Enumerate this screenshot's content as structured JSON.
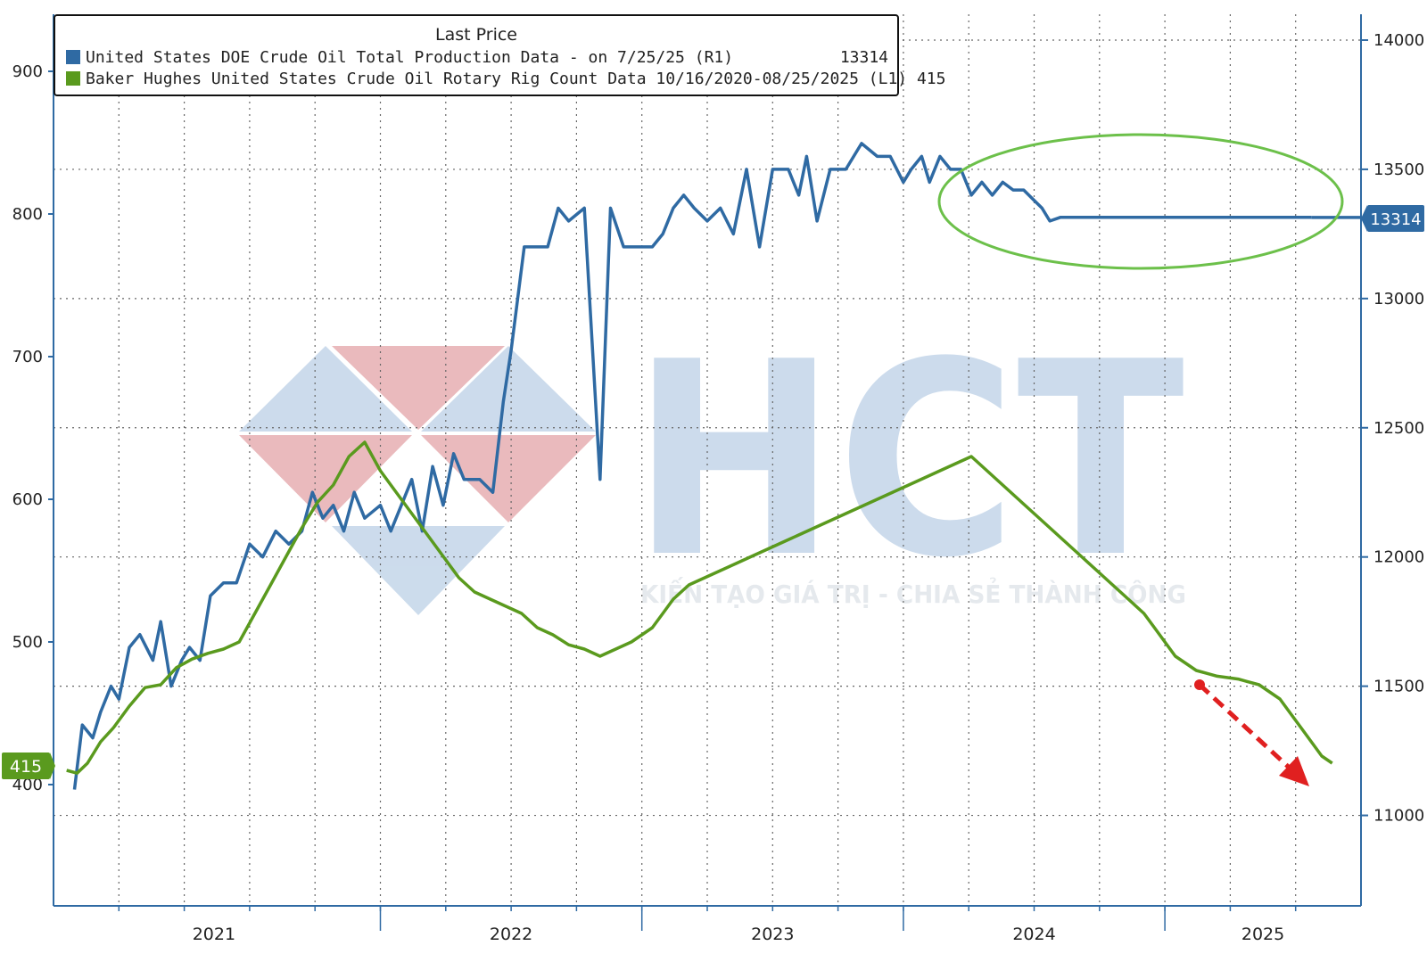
{
  "colors": {
    "production": "#2f6aa3",
    "rig_count": "#5a9a1e",
    "grid": "#555555",
    "axis": "#2f6aa3",
    "annotation_ellipse": "#6cc04a",
    "annotation_arrow": "#e02020",
    "watermark_red": "#e8b3b6",
    "watermark_blue": "#c7d8ea"
  },
  "legend": {
    "title": "Last Price",
    "series1_label": "United States DOE Crude Oil Total Production Data -  on 7/25/25  (R1)",
    "series1_value": "13314",
    "series2_label": "Baker Hughes United States Crude Oil Rotary Rig Count Data 10/16/2020-08/25/2025   (L1) 415"
  },
  "watermark": {
    "brand": "HCT",
    "tagline": "KIẾN TẠO GIÁ TRỊ - CHIA SẺ THÀNH CÔNG"
  },
  "chart_data": {
    "type": "line",
    "x_unit": "year",
    "x_ticks": [
      "2021",
      "2022",
      "2023",
      "2024",
      "2025"
    ],
    "left_axis": {
      "ticks": [
        "900",
        "800",
        "700",
        "600",
        "500",
        "400"
      ],
      "ylim": [
        315,
        940
      ]
    },
    "right_axis": {
      "ticks": [
        "14000",
        "13500",
        "13000",
        "12500",
        "12000",
        "11500",
        "11000"
      ],
      "ylim": [
        10650,
        14100
      ]
    },
    "current_labels": {
      "left": "415",
      "right": "13314"
    },
    "grid": true,
    "legend_position": "top-left",
    "series": [
      {
        "name": "United States DOE Crude Oil Total Production Data",
        "axis": "right",
        "x": [
          2020.83,
          2020.86,
          2020.9,
          2020.93,
          2020.97,
          2021.0,
          2021.04,
          2021.08,
          2021.13,
          2021.16,
          2021.2,
          2021.24,
          2021.27,
          2021.31,
          2021.35,
          2021.4,
          2021.45,
          2021.5,
          2021.55,
          2021.6,
          2021.65,
          2021.7,
          2021.74,
          2021.78,
          2021.82,
          2021.86,
          2021.9,
          2021.94,
          2022.0,
          2022.04,
          2022.08,
          2022.12,
          2022.16,
          2022.2,
          2022.24,
          2022.28,
          2022.32,
          2022.38,
          2022.43,
          2022.47,
          2022.5,
          2022.55,
          2022.6,
          2022.64,
          2022.68,
          2022.72,
          2022.78,
          2022.84,
          2022.88,
          2022.93,
          2022.97,
          2023.0,
          2023.04,
          2023.08,
          2023.12,
          2023.16,
          2023.2,
          2023.25,
          2023.3,
          2023.35,
          2023.4,
          2023.45,
          2023.5,
          2023.53,
          2023.56,
          2023.6,
          2023.63,
          2023.67,
          2023.72,
          2023.78,
          2023.84,
          2023.9,
          2023.95,
          2024.0,
          2024.03,
          2024.07,
          2024.1,
          2024.14,
          2024.18,
          2024.22,
          2024.26,
          2024.3,
          2024.34,
          2024.38,
          2024.42,
          2024.46,
          2024.5,
          2024.53,
          2024.56,
          2024.6,
          2024.63,
          2024.67,
          2024.7,
          2024.74,
          2024.78,
          2024.82,
          2024.86,
          2024.9,
          2024.94,
          2025.0,
          2025.04,
          2025.08,
          2025.12,
          2025.16,
          2025.2,
          2025.25,
          2025.3,
          2025.35,
          2025.4,
          2025.45,
          2025.5,
          2025.56
        ],
        "values": [
          11100,
          11350,
          11300,
          11400,
          11500,
          11450,
          11650,
          11700,
          11600,
          11750,
          11500,
          11600,
          11650,
          11600,
          11850,
          11900,
          11900,
          12050,
          12000,
          12100,
          12050,
          12100,
          12250,
          12150,
          12200,
          12100,
          12250,
          12150,
          12200,
          12100,
          12200,
          12300,
          12100,
          12350,
          12200,
          12400,
          12300,
          12300,
          12250,
          12600,
          12800,
          13200,
          13200,
          13200,
          13350,
          13300,
          13350,
          12300,
          13350,
          13200,
          13200,
          13200,
          13200,
          13250,
          13350,
          13400,
          13350,
          13300,
          13350,
          13250,
          13500,
          13200,
          13500,
          13500,
          13500,
          13400,
          13550,
          13300,
          13500,
          13500,
          13600,
          13550,
          13550,
          13450,
          13500,
          13550,
          13450,
          13550,
          13500,
          13500,
          13400,
          13450,
          13400,
          13450,
          13420,
          13420,
          13380,
          13350,
          13300,
          13314,
          13314,
          13314,
          13314,
          13314,
          13314,
          13314,
          13314,
          13314,
          13314,
          13314,
          13314,
          13314,
          13314,
          13314,
          13314,
          13314,
          13314,
          13314,
          13314,
          13314,
          13314,
          13314
        ]
      },
      {
        "name": "Baker Hughes United States Crude Oil Rotary Rig Count Data",
        "axis": "left",
        "x": [
          2020.8,
          2020.84,
          2020.88,
          2020.93,
          2020.98,
          2021.04,
          2021.1,
          2021.16,
          2021.22,
          2021.28,
          2021.34,
          2021.4,
          2021.46,
          2021.52,
          2021.58,
          2021.64,
          2021.7,
          2021.76,
          2021.82,
          2021.88,
          2021.94,
          2022.0,
          2022.06,
          2022.12,
          2022.18,
          2022.24,
          2022.3,
          2022.36,
          2022.42,
          2022.48,
          2022.54,
          2022.6,
          2022.66,
          2022.72,
          2022.78,
          2022.84,
          2022.9,
          2022.96,
          2023.0,
          2023.04,
          2023.08,
          2023.12,
          2023.18,
          2023.24,
          2023.3,
          2023.36,
          2023.42,
          2023.48,
          2023.54,
          2023.6,
          2023.66,
          2023.72,
          2023.78,
          2023.84,
          2023.9,
          2023.96,
          2024.02,
          2024.08,
          2024.14,
          2024.2,
          2024.26,
          2024.32,
          2024.38,
          2024.44,
          2024.5,
          2024.56,
          2024.62,
          2024.68,
          2024.74,
          2024.8,
          2024.86,
          2024.92,
          2024.96,
          2025.0,
          2025.04,
          2025.08,
          2025.12,
          2025.16,
          2025.2,
          2025.24,
          2025.28,
          2025.32,
          2025.36,
          2025.4,
          2025.44,
          2025.48,
          2025.52,
          2025.56,
          2025.6,
          2025.64
        ],
        "values": [
          410,
          408,
          415,
          430,
          440,
          455,
          468,
          470,
          482,
          488,
          492,
          495,
          500,
          520,
          540,
          560,
          580,
          598,
          610,
          630,
          640,
          620,
          605,
          590,
          575,
          560,
          545,
          535,
          530,
          525,
          520,
          510,
          505,
          498,
          495,
          490,
          495,
          500,
          505,
          510,
          520,
          530,
          540,
          545,
          550,
          555,
          560,
          565,
          570,
          575,
          580,
          585,
          590,
          595,
          600,
          605,
          610,
          615,
          620,
          625,
          630,
          620,
          610,
          600,
          590,
          580,
          570,
          560,
          550,
          540,
          530,
          520,
          510,
          500,
          490,
          485,
          480,
          478,
          476,
          475,
          474,
          472,
          470,
          465,
          460,
          450,
          440,
          430,
          420,
          415
        ]
      }
    ]
  }
}
